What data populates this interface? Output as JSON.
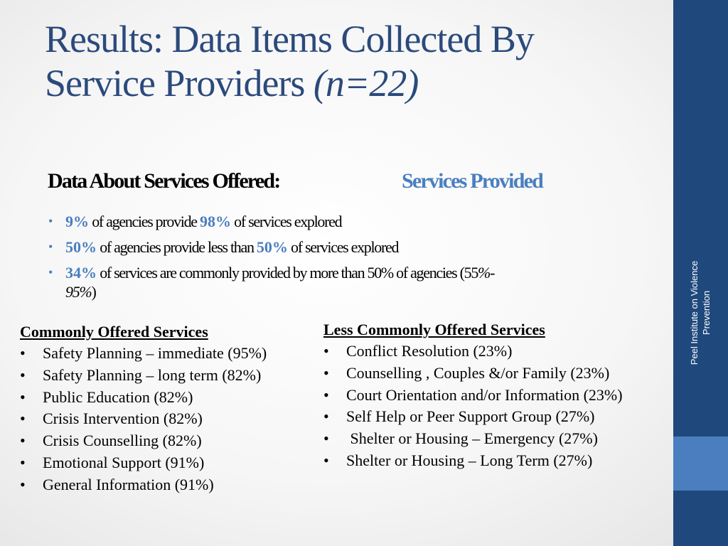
{
  "title": {
    "line1": "Results: Data Items Collected By",
    "line2": "Service Providers ",
    "n": "(n=22)"
  },
  "sidebar": {
    "line1": "Peel Institute on Violence",
    "line2": "Prevention"
  },
  "subheadings": {
    "left": "Data About Services Offered:",
    "right": "Services Provided"
  },
  "key_points": [
    {
      "hl1": "9%",
      "t1": " of agencies provide ",
      "hl2": "98%",
      "t2": "  of services explored"
    },
    {
      "hl1": "50%",
      "t1": " of agencies provide less than ",
      "hl2": "50%",
      "t2": "  of services explored"
    },
    {
      "hl1": "34%",
      "t1": " of services are commonly provided by more than 50% of agencies (55",
      "it1": "%-",
      "br": "95%",
      "end": ")"
    }
  ],
  "commonly_offered": {
    "heading": "Commonly Offered Services",
    "items": [
      "Safety Planning – immediate (95%)",
      "Safety Planning – long term (82%)",
      "Public Education (82%)",
      "Crisis Intervention (82%)",
      "Crisis Counselling (82%)",
      "Emotional Support (91%)",
      "General Information (91%)"
    ]
  },
  "less_commonly_offered": {
    "heading": "Less Commonly Offered Services",
    "items": [
      "Conflict Resolution (23%)",
      "Counselling , Couples &/or Family (23%)",
      "Court Orientation and/or Information (23%)",
      "Self Help or Peer Support Group (27%)",
      " Shelter or Housing – Emergency (27%)",
      "Shelter or Housing – Long Term (27%)"
    ]
  },
  "bullet_char": "•",
  "colors": {
    "title": "#2b4a7c",
    "accent": "#4a7ebf",
    "sidebar": "#1f497d",
    "sidebar_band": "#4a7ebf"
  }
}
